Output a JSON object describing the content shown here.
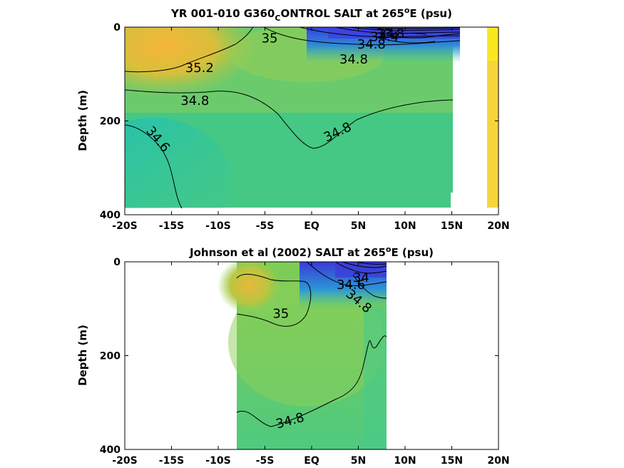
{
  "chart_data": [
    {
      "type": "heatmap",
      "title_pre": "YR 001-010 G360",
      "title_sub": "C",
      "title_mid": "ONTROL SALT at 265",
      "title_sup": "o",
      "title_post": "E (psu)",
      "ylabel": "Depth (m)",
      "xlim": [
        -20,
        20
      ],
      "ylim": [
        400,
        0
      ],
      "xticks": [
        -20,
        -15,
        -10,
        -5,
        0,
        5,
        10,
        15,
        20
      ],
      "xtick_labels": [
        "-20S",
        "-15S",
        "-10S",
        "-5S",
        "EQ",
        "5N",
        "10N",
        "15N",
        "20N"
      ],
      "yticks": [
        0,
        200,
        400
      ],
      "ytick_labels": [
        "0",
        "200",
        "400"
      ],
      "contour_labels": [
        {
          "text": "35.2",
          "x": -12.0,
          "y": 88
        },
        {
          "text": "35",
          "x": -4.5,
          "y": 25
        },
        {
          "text": "34.8",
          "x": -12.5,
          "y": 158
        },
        {
          "text": "34.6",
          "x": -16.5,
          "y": 240,
          "angle": 50
        },
        {
          "text": "34.8",
          "x": 2.8,
          "y": 225,
          "angle": -25
        },
        {
          "text": "34.8",
          "x": 4.5,
          "y": 70
        },
        {
          "text": "34.8",
          "x": 6.4,
          "y": 38
        },
        {
          "text": "34.4",
          "x": 7.8,
          "y": 22
        },
        {
          "text": "33.8",
          "x": 8.4,
          "y": 15
        },
        {
          "text": "34",
          "x": 8.0,
          "y": 16
        }
      ],
      "salinity_range": [
        33.6,
        35.3
      ]
    },
    {
      "type": "heatmap",
      "title_pre": "Johnson et al (2002) SALT at 265",
      "title_sup": "o",
      "title_post": "E (psu)",
      "ylabel": "Depth (m)",
      "xlim": [
        -20,
        20
      ],
      "ylim": [
        400,
        0
      ],
      "xticks": [
        -20,
        -15,
        -10,
        -5,
        0,
        5,
        10,
        15,
        20
      ],
      "xtick_labels": [
        "-20S",
        "-15S",
        "-10S",
        "-5S",
        "EQ",
        "5N",
        "10N",
        "15N",
        "20N"
      ],
      "yticks": [
        0,
        200,
        400
      ],
      "ytick_labels": [
        "0",
        "200",
        "400"
      ],
      "data_xrange": [
        -8,
        8
      ],
      "contour_labels": [
        {
          "text": "35",
          "x": -3.3,
          "y": 112
        },
        {
          "text": "34",
          "x": 5.3,
          "y": 35
        },
        {
          "text": "34.6",
          "x": 4.2,
          "y": 50
        },
        {
          "text": "34.8",
          "x": 5.0,
          "y": 85,
          "angle": 40
        },
        {
          "text": "34.8",
          "x": -2.3,
          "y": 340,
          "angle": -15
        }
      ],
      "salinity_range": [
        33.6,
        35.3
      ]
    }
  ]
}
